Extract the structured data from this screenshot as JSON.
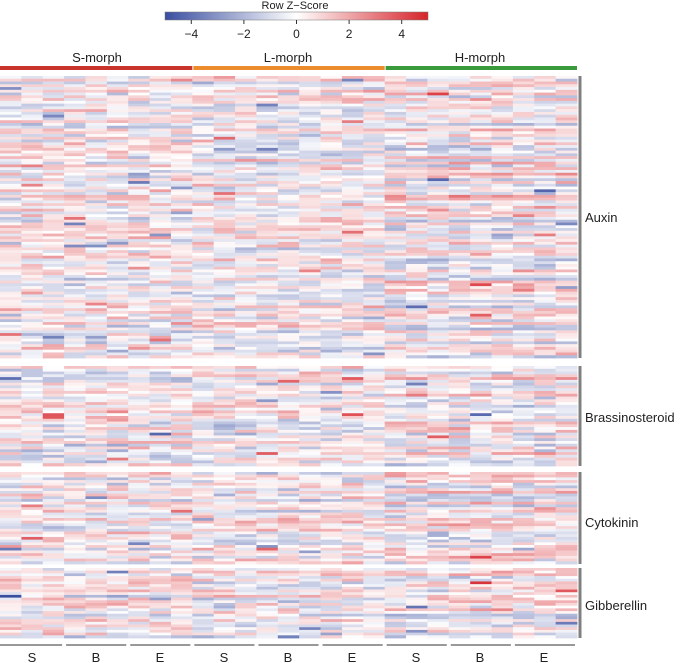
{
  "chart_data": {
    "type": "heatmap",
    "title": "",
    "color_key": {
      "title": "Row Z−Score",
      "range": [
        -5,
        5
      ],
      "ticks": [
        {
          "value": -4,
          "label": "−4"
        },
        {
          "value": -2,
          "label": "−2"
        },
        {
          "value": 0,
          "label": "0"
        },
        {
          "value": 2,
          "label": "2"
        },
        {
          "value": 4,
          "label": "4"
        }
      ],
      "colors": {
        "low": "#3a4ea0",
        "mid": "#ffffff",
        "high": "#d6232a"
      }
    },
    "morph_groups": [
      {
        "name": "S-morph",
        "color": "#c8342c",
        "columns": 9
      },
      {
        "name": "L-morph",
        "color": "#ec8c2c",
        "columns": 9
      },
      {
        "name": "H-morph",
        "color": "#3a9a3c",
        "columns": 9
      }
    ],
    "sample_groups": [
      {
        "label": "S",
        "morph": "S-morph",
        "columns": 3
      },
      {
        "label": "B",
        "morph": "S-morph",
        "columns": 3
      },
      {
        "label": "E",
        "morph": "S-morph",
        "columns": 3
      },
      {
        "label": "S",
        "morph": "L-morph",
        "columns": 3
      },
      {
        "label": "B",
        "morph": "L-morph",
        "columns": 3
      },
      {
        "label": "E",
        "morph": "L-morph",
        "columns": 3
      },
      {
        "label": "S",
        "morph": "H-morph",
        "columns": 3
      },
      {
        "label": "B",
        "morph": "H-morph",
        "columns": 3
      },
      {
        "label": "E",
        "morph": "H-morph",
        "columns": 3
      }
    ],
    "row_groups": [
      {
        "name": "Auxin",
        "rows": 102
      },
      {
        "name": "Brassinosteroid",
        "rows": 36
      },
      {
        "name": "Cytokinin",
        "rows": 34
      },
      {
        "name": "Gibberellin",
        "rows": 26
      }
    ],
    "value_range": [
      -5,
      5
    ],
    "noise_seed": 20240611
  },
  "brand_colors": {
    "left_bracket": "#808080",
    "tick_line": "#333333"
  }
}
